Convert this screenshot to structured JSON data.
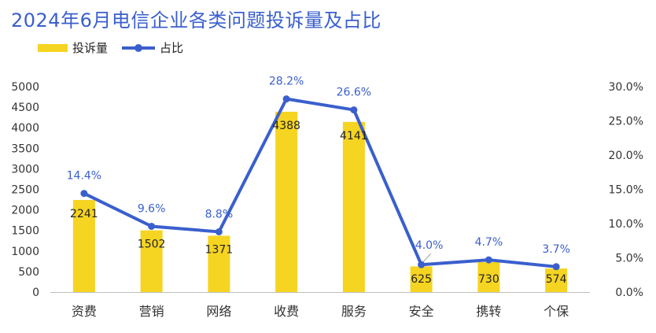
{
  "title": "2024年6月电信企业各类问题投诉量及占比",
  "legend": {
    "bar": "投诉量",
    "line": "占比"
  },
  "colors": {
    "bar": "#f5d422",
    "line": "#3a5fcd",
    "title": "#3a5fcd"
  },
  "chart_data": {
    "type": "bar",
    "title": "2024年6月电信企业各类问题投诉量及占比",
    "categories": [
      "资费",
      "营销",
      "网络",
      "收费",
      "服务",
      "安全",
      "携转",
      "个保"
    ],
    "series": [
      {
        "name": "投诉量",
        "type": "bar",
        "axis": "left",
        "values": [
          2241,
          1502,
          1371,
          4388,
          4141,
          625,
          730,
          574
        ]
      },
      {
        "name": "占比",
        "type": "line",
        "axis": "right",
        "values": [
          14.4,
          9.6,
          8.8,
          28.2,
          26.6,
          4.0,
          4.7,
          3.7
        ],
        "labels": [
          "14.4%",
          "9.6%",
          "8.8%",
          "28.2%",
          "26.6%",
          "4.0%",
          "4.7%",
          "3.7%"
        ]
      }
    ],
    "ylim_left": [
      0,
      5000
    ],
    "yticks_left": [
      "0",
      "500",
      "1000",
      "1500",
      "2000",
      "2500",
      "3000",
      "3500",
      "4000",
      "4500",
      "5000"
    ],
    "ylim_right": [
      0,
      30
    ],
    "yticks_right": [
      "0.0%",
      "5.0%",
      "10.0%",
      "15.0%",
      "20.0%",
      "25.0%",
      "30.0%"
    ],
    "grid": false,
    "legend_position": "top-left"
  }
}
